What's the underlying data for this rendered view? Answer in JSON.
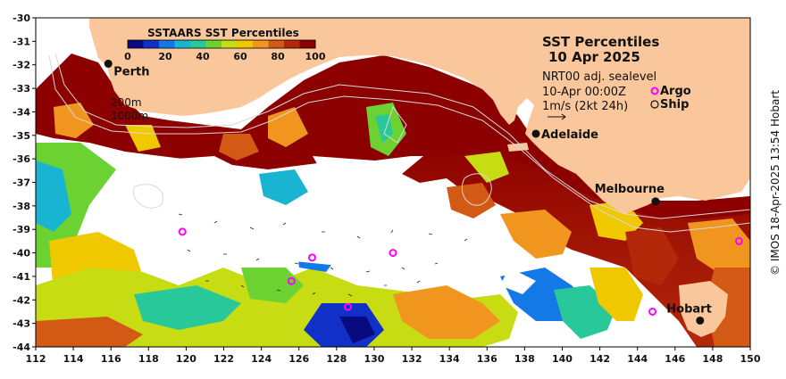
{
  "title": "SST Percentiles",
  "date": "10 Apr 2025",
  "product": "NRT00 adj. sealevel",
  "time": "10-Apr 00:00Z",
  "argo_label": "Argo",
  "ship_label": "Ship",
  "vector_scale": "1m/s (2kt 24h)",
  "colorbar": {
    "title": "SSTAARS SST Percentiles",
    "ticks": [
      "0",
      "20",
      "40",
      "60",
      "80",
      "100"
    ],
    "colors": [
      "#0a0a80",
      "#1030c8",
      "#1478e6",
      "#18b4d2",
      "#28c89a",
      "#6cd232",
      "#c8dc14",
      "#f0c800",
      "#f0961e",
      "#d25a14",
      "#b4280a",
      "#8c0000"
    ]
  },
  "contours": [
    "200m",
    "1000m"
  ],
  "cities": [
    {
      "name": "Perth",
      "lon": 115.86,
      "lat": -31.95
    },
    {
      "name": "Adelaide",
      "lon": 138.6,
      "lat": -34.93
    },
    {
      "name": "Melbourne",
      "lon": 144.96,
      "lat": -37.81
    },
    {
      "name": "Hobart",
      "lon": 147.33,
      "lat": -42.88
    }
  ],
  "argo_floats": [
    {
      "lon": 119.8,
      "lat": -39.1
    },
    {
      "lon": 126.7,
      "lat": -40.2
    },
    {
      "lon": 125.6,
      "lat": -41.2
    },
    {
      "lon": 131.0,
      "lat": -40.0
    },
    {
      "lon": 128.6,
      "lat": -42.3
    },
    {
      "lon": 144.8,
      "lat": -42.5
    },
    {
      "lon": 149.4,
      "lat": -39.5
    }
  ],
  "axes": {
    "x_ticks": [
      "112",
      "114",
      "116",
      "118",
      "120",
      "122",
      "124",
      "126",
      "128",
      "130",
      "132",
      "134",
      "136",
      "138",
      "140",
      "142",
      "144",
      "146",
      "148",
      "150"
    ],
    "y_ticks": [
      "-30",
      "-31",
      "-32",
      "-33",
      "-34",
      "-35",
      "-36",
      "-37",
      "-38",
      "-39",
      "-40",
      "-41",
      "-42",
      "-43",
      "-44"
    ],
    "lon_range": [
      112,
      150
    ],
    "lat_range": [
      -44,
      -30
    ]
  },
  "credit": "© IMOS 18-Apr-2025 13:54 Hobart",
  "colors": {
    "land": "#f9c79b",
    "sea": "#ffffff",
    "accent": "#8c0000"
  }
}
